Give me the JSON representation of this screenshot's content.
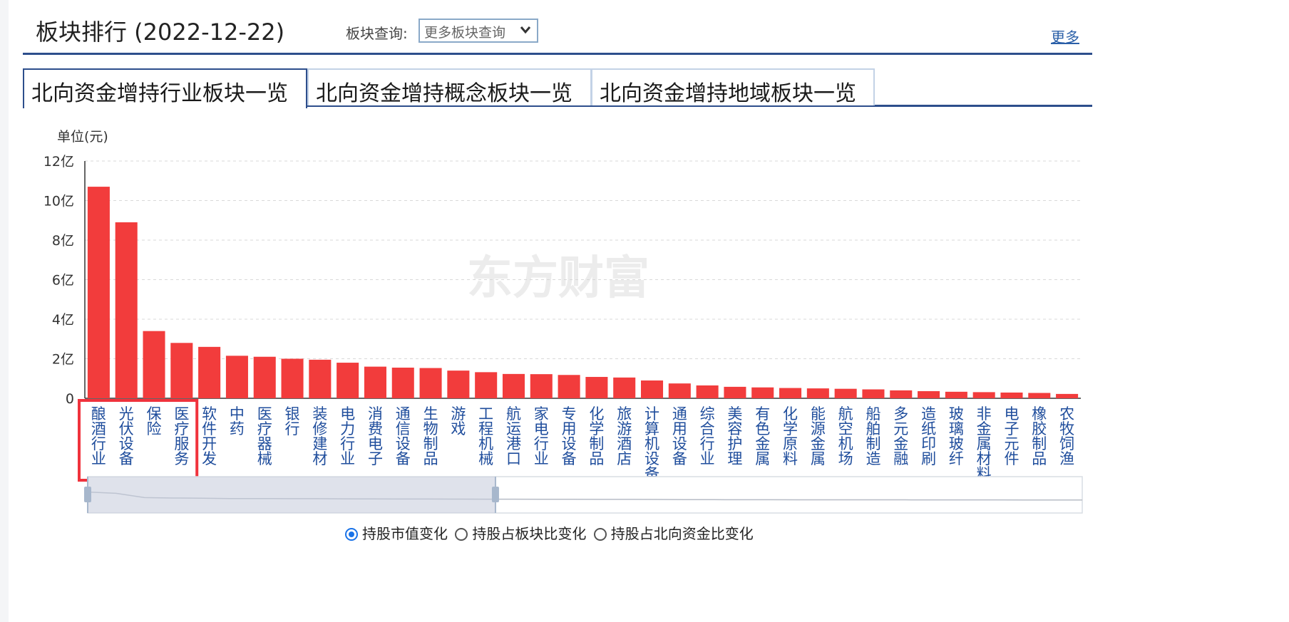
{
  "header": {
    "title": "板块排行 (2022-12-22)",
    "query_label": "板块查询:",
    "query_select_value": "更多板块查询",
    "more_link": "更多"
  },
  "tabs": [
    {
      "label": "北向资金增持行业板块一览",
      "active": true
    },
    {
      "label": "北向资金增持概念板块一览",
      "active": false
    },
    {
      "label": "北向资金增持地域板块一览",
      "active": false
    }
  ],
  "watermark": "东方财富",
  "radio_options": [
    {
      "label": "持股市值变化",
      "selected": true
    },
    {
      "label": "持股占板块比变化",
      "selected": false
    },
    {
      "label": "持股占北向资金比变化",
      "selected": false
    }
  ],
  "chart_data": {
    "type": "bar",
    "ylabel": "单位(元)",
    "ylim": [
      0,
      12
    ],
    "yticks": [
      "0",
      "2亿",
      "4亿",
      "6亿",
      "8亿",
      "10亿",
      "12亿"
    ],
    "grid": true,
    "bar_color": "#f23c3c",
    "highlight_color": "#f0323c",
    "highlight_categories": [
      "酿酒行业",
      "光伏设备",
      "保险",
      "医疗服务"
    ],
    "categories": [
      "酿酒行业",
      "光伏设备",
      "保险",
      "医疗服务",
      "软件开发",
      "中药",
      "医疗器械",
      "银行",
      "装修建材",
      "电力行业",
      "消费电子",
      "通信设备",
      "生物制品",
      "游戏",
      "工程机械",
      "航运港口",
      "家电行业",
      "专用设备",
      "化学制品",
      "旅游酒店",
      "计算机设备",
      "通用设备",
      "综合行业",
      "美容护理",
      "有色金属",
      "化学原料",
      "能源金属",
      "航空机场",
      "船舶制造",
      "多元金融",
      "造纸印刷",
      "玻璃玻纤",
      "非金属材料",
      "电子元件",
      "橡胶制品",
      "农牧饲渔"
    ],
    "values": [
      10.7,
      8.9,
      3.4,
      2.8,
      2.6,
      2.15,
      2.1,
      2.0,
      1.95,
      1.8,
      1.6,
      1.55,
      1.53,
      1.4,
      1.32,
      1.23,
      1.22,
      1.18,
      1.08,
      1.05,
      0.9,
      0.75,
      0.65,
      0.58,
      0.55,
      0.52,
      0.5,
      0.48,
      0.45,
      0.4,
      0.36,
      0.33,
      0.31,
      0.29,
      0.27,
      0.22
    ],
    "series": [
      {
        "values": [
          10.7,
          8.9,
          3.4,
          2.8,
          2.6,
          2.15,
          2.1,
          2.0,
          1.95,
          1.8,
          1.6,
          1.55,
          1.53,
          1.4,
          1.32,
          1.23,
          1.22,
          1.18,
          1.08,
          1.05,
          0.9,
          0.75,
          0.65,
          0.58,
          0.55,
          0.52,
          0.5,
          0.48,
          0.45,
          0.4,
          0.36,
          0.33,
          0.31,
          0.29,
          0.27,
          0.22
        ]
      }
    ],
    "datazoom": {
      "start_fraction": 0,
      "end_fraction": 0.41
    }
  }
}
